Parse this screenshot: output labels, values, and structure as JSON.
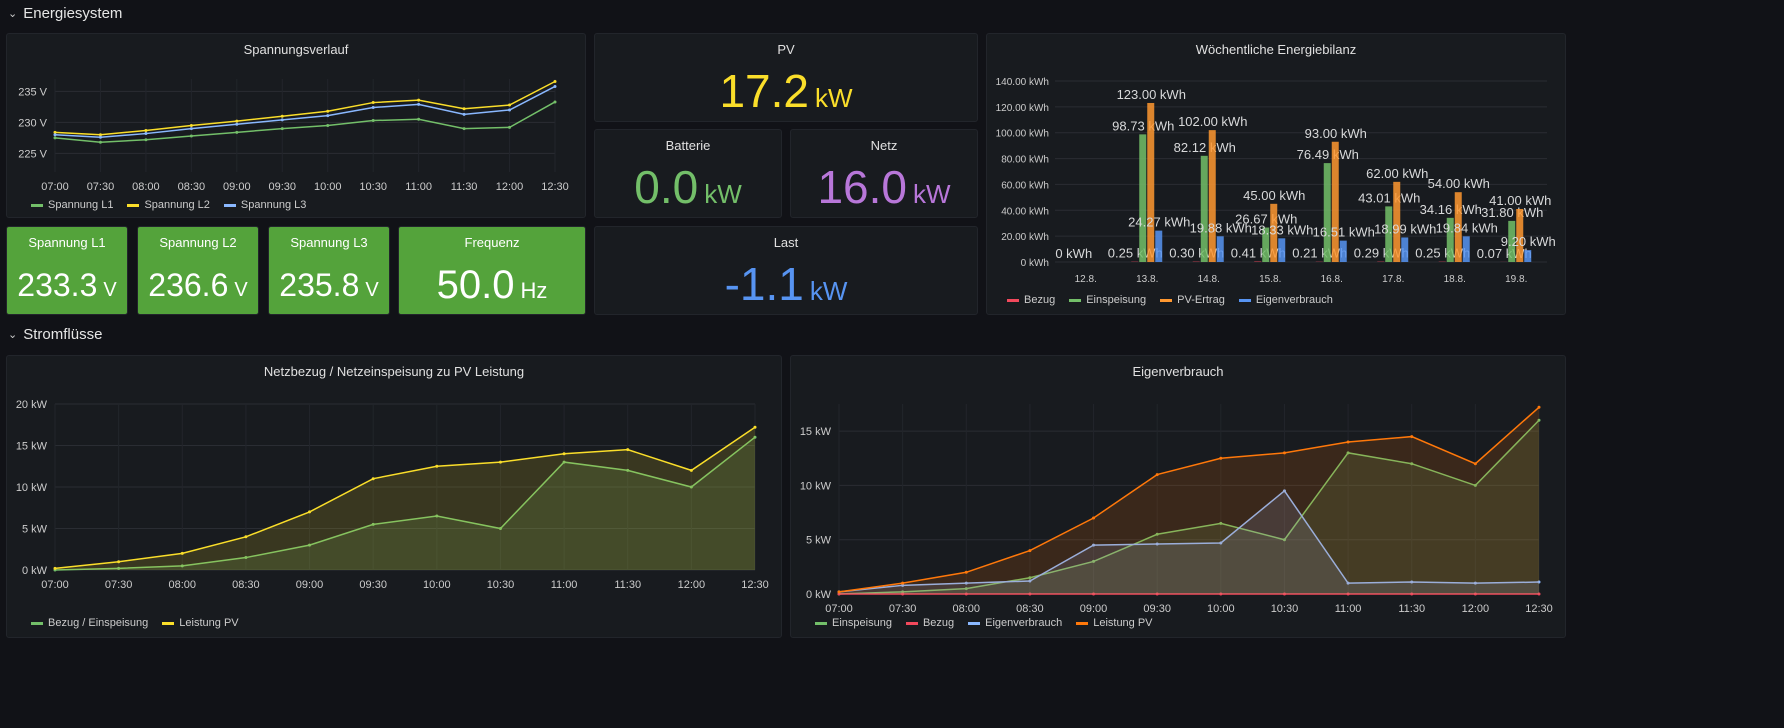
{
  "rows": {
    "energie": "Energiesystem",
    "strom": "Stromflüsse"
  },
  "colors": {
    "l1": "#73bf69",
    "l2": "#fade2a",
    "l3": "#8ab8ff",
    "bezug": "#f2495c",
    "einsp": "#73bf69",
    "pv": "#ff9830",
    "eigen": "#5794f2",
    "pvline": "#fade2a",
    "purple": "#b877d9",
    "blue": "#5794f2",
    "orange": "#ff780a"
  },
  "stats": {
    "pv": {
      "title": "PV",
      "value": "17.2",
      "unit": "kW"
    },
    "batterie": {
      "title": "Batterie",
      "value": "0.0",
      "unit": "kW"
    },
    "netz": {
      "title": "Netz",
      "value": "16.0",
      "unit": "kW"
    },
    "last": {
      "title": "Last",
      "value": "-1.1",
      "unit": "kW"
    },
    "l1": {
      "title": "Spannung L1",
      "value": "233.3",
      "unit": "V"
    },
    "l2": {
      "title": "Spannung L2",
      "value": "236.6",
      "unit": "V"
    },
    "l3": {
      "title": "Spannung L3",
      "value": "235.8",
      "unit": "V"
    },
    "freq": {
      "title": "Frequenz",
      "value": "50.0",
      "unit": "Hz"
    }
  },
  "chart_data": [
    {
      "id": "spannung",
      "type": "line",
      "title": "Spannungsverlauf",
      "x": [
        "07:00",
        "07:30",
        "08:00",
        "08:30",
        "09:00",
        "09:30",
        "10:00",
        "10:30",
        "11:00",
        "11:30",
        "12:00",
        "12:30"
      ],
      "yticks": [
        "225 V",
        "230 V",
        "235 V"
      ],
      "ylim": [
        222,
        237
      ],
      "series": [
        {
          "name": "Spannung L1",
          "values": [
            227.5,
            226.8,
            227.2,
            227.8,
            228.4,
            229.0,
            229.5,
            230.3,
            230.5,
            229.0,
            229.2,
            233.3
          ]
        },
        {
          "name": "Spannung L2",
          "values": [
            228.4,
            228.0,
            228.7,
            229.5,
            230.2,
            231.0,
            231.8,
            233.2,
            233.6,
            232.2,
            232.8,
            236.6
          ]
        },
        {
          "name": "Spannung L3",
          "values": [
            228.0,
            227.6,
            228.2,
            229.0,
            229.7,
            230.4,
            231.1,
            232.4,
            232.9,
            231.3,
            232.0,
            235.8
          ]
        }
      ]
    },
    {
      "id": "bilanz",
      "type": "bar",
      "title": "Wöchentliche Energiebilanz",
      "categories": [
        "12.8.",
        "13.8.",
        "14.8.",
        "15.8.",
        "16.8.",
        "17.8.",
        "18.8.",
        "19.8."
      ],
      "yticks": [
        "0 kWh",
        "20.00 kWh",
        "40.00 kWh",
        "60.00 kWh",
        "80.00 kWh",
        "100.00 kWh",
        "120.00 kWh",
        "140.00 kWh"
      ],
      "ylim": [
        0,
        140
      ],
      "series": [
        {
          "name": "Bezug",
          "values": [
            0,
            0.25,
            0.3,
            0.41,
            0.21,
            0.29,
            0.25,
            0.07
          ]
        },
        {
          "name": "Einspeisung",
          "values": [
            0,
            98.73,
            82.12,
            26.67,
            76.49,
            43.01,
            34.16,
            31.8
          ]
        },
        {
          "name": "PV-Ertrag",
          "values": [
            0,
            123.0,
            102.0,
            45.0,
            93.0,
            62.0,
            54.0,
            41.0
          ]
        },
        {
          "name": "Eigenverbrauch",
          "values": [
            0,
            24.27,
            19.88,
            18.33,
            16.51,
            18.99,
            19.84,
            9.2
          ]
        }
      ],
      "labels": {
        "bezug": [
          "0 kWh",
          "0.25 kWh",
          "0.30 kWh",
          "0.41 kWh",
          "0.21 kWh",
          "0.29 kWh",
          "0.25 kWh",
          "0.07 kWh"
        ],
        "einsp": [
          "",
          "98.73 kWh",
          "82.12 kWh",
          "26.67 kWh",
          "76.49 kWh",
          "43.01 kWh",
          "34.16 kWh",
          "31.80 kWh"
        ],
        "pv": [
          "",
          "123.00 kWh",
          "102.00 kWh",
          "45.00 kWh",
          "93.00 kWh",
          "62.00 kWh",
          "54.00 kWh",
          "41.00 kWh"
        ],
        "eigen": [
          "",
          "24.27 kWh",
          "19.88 kWh",
          "18.33 kWh",
          "16.51 kWh",
          "18.99 kWh",
          "19.84 kWh",
          "9.20 kWh"
        ]
      }
    },
    {
      "id": "netzbezug",
      "type": "area",
      "title": "Netzbezug / Netzeinspeisung zu PV Leistung",
      "x": [
        "07:00",
        "07:30",
        "08:00",
        "08:30",
        "09:00",
        "09:30",
        "10:00",
        "10:30",
        "11:00",
        "11:30",
        "12:00",
        "12:30"
      ],
      "yticks": [
        "0 kW",
        "5 kW",
        "10 kW",
        "15 kW",
        "20 kW"
      ],
      "ylim": [
        0,
        20
      ],
      "series": [
        {
          "name": "Bezug / Einspeisung",
          "values": [
            0.0,
            0.2,
            0.5,
            1.5,
            3.0,
            5.5,
            6.5,
            5.0,
            13.0,
            12.0,
            10.0,
            16.0
          ]
        },
        {
          "name": "Leistung PV",
          "values": [
            0.2,
            1.0,
            2.0,
            4.0,
            7.0,
            11.0,
            12.5,
            13.0,
            14.0,
            14.5,
            12.0,
            17.2
          ]
        }
      ]
    },
    {
      "id": "eigen",
      "type": "area",
      "title": "Eigenverbrauch",
      "x": [
        "07:00",
        "07:30",
        "08:00",
        "08:30",
        "09:00",
        "09:30",
        "10:00",
        "10:30",
        "11:00",
        "11:30",
        "12:00",
        "12:30"
      ],
      "yticks": [
        "0 kW",
        "5 kW",
        "10 kW",
        "15 kW"
      ],
      "ylim": [
        0,
        17.5
      ],
      "series": [
        {
          "name": "Einspeisung",
          "values": [
            0.0,
            0.2,
            0.5,
            1.5,
            3.0,
            5.5,
            6.5,
            5.0,
            13.0,
            12.0,
            10.0,
            16.0
          ]
        },
        {
          "name": "Bezug",
          "values": [
            0,
            0,
            0,
            0,
            0,
            0,
            0,
            0,
            0,
            0,
            0,
            0
          ]
        },
        {
          "name": "Eigenverbrauch",
          "values": [
            0.2,
            0.8,
            1.0,
            1.2,
            4.5,
            4.6,
            4.7,
            9.5,
            1.0,
            1.1,
            1.0,
            1.1
          ]
        },
        {
          "name": "Leistung PV",
          "values": [
            0.2,
            1.0,
            2.0,
            4.0,
            7.0,
            11.0,
            12.5,
            13.0,
            14.0,
            14.5,
            12.0,
            17.2
          ]
        }
      ]
    }
  ]
}
